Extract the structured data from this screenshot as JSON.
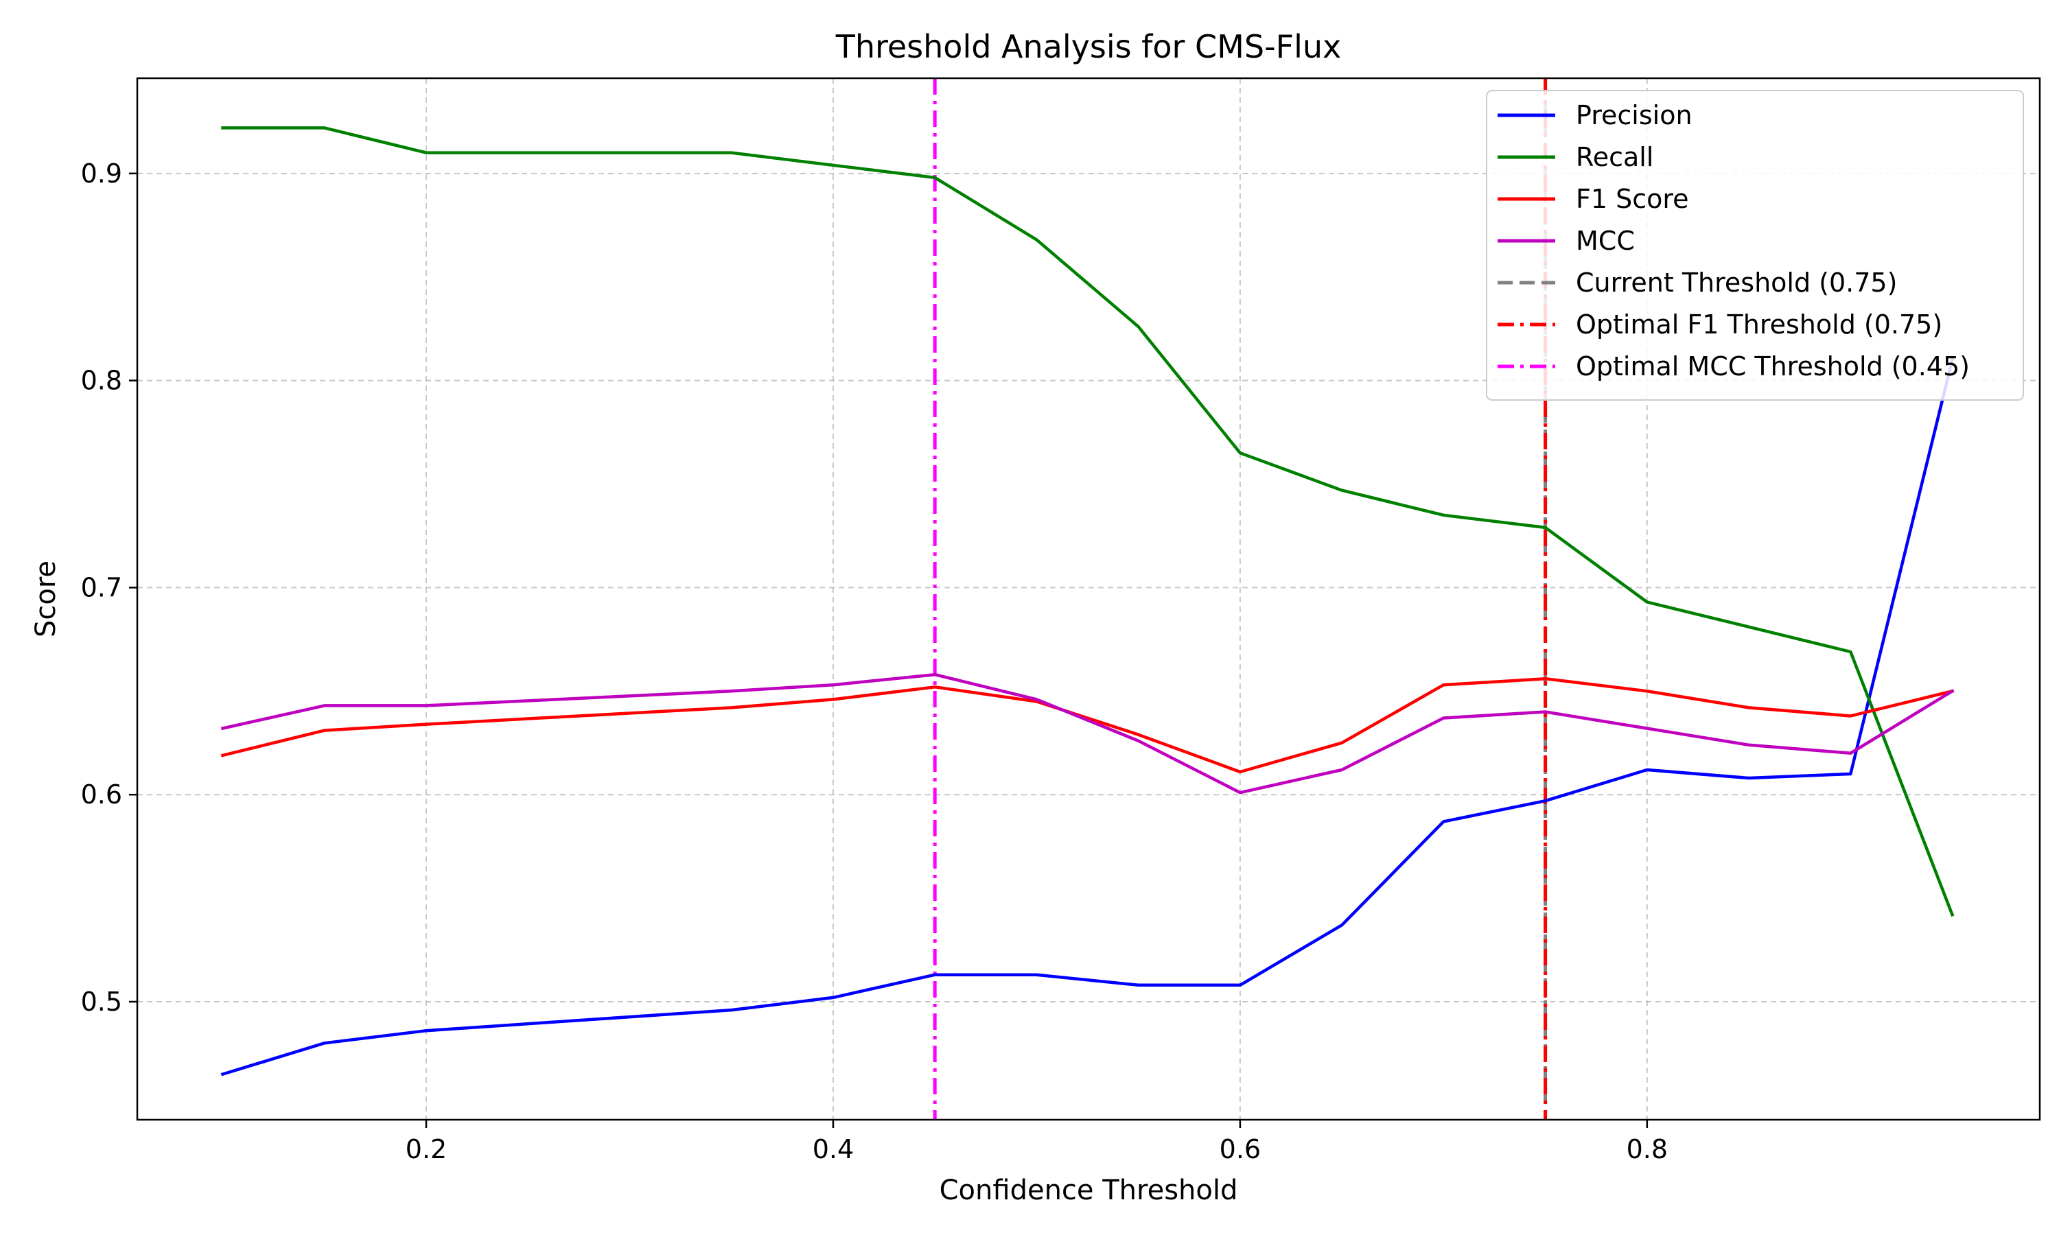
{
  "chart_data": {
    "type": "line",
    "title": "Threshold Analysis for CMS-Flux",
    "xlabel": "Confidence Threshold",
    "ylabel": "Score",
    "xlim": [
      0.058,
      0.993
    ],
    "ylim": [
      0.443,
      0.946
    ],
    "x_ticks": [
      0.2,
      0.4,
      0.6,
      0.8
    ],
    "x_tick_labels": [
      "0.2",
      "0.4",
      "0.6",
      "0.8"
    ],
    "y_ticks": [
      0.5,
      0.6,
      0.7,
      0.8,
      0.9
    ],
    "y_tick_labels": [
      "0.5",
      "0.6",
      "0.7",
      "0.8",
      "0.9"
    ],
    "grid": true,
    "legend_position": "top-right",
    "x": [
      0.1,
      0.15,
      0.2,
      0.35,
      0.4,
      0.45,
      0.5,
      0.55,
      0.6,
      0.65,
      0.7,
      0.75,
      0.8,
      0.85,
      0.9,
      0.95
    ],
    "series": [
      {
        "name": "Precision",
        "color": "#0000ff",
        "values": [
          0.465,
          0.48,
          0.486,
          0.496,
          0.502,
          0.513,
          0.513,
          0.508,
          0.508,
          0.537,
          0.587,
          0.597,
          0.612,
          0.608,
          0.61,
          0.81
        ]
      },
      {
        "name": "Recall",
        "color": "#008000",
        "values": [
          0.922,
          0.922,
          0.91,
          0.91,
          0.904,
          0.898,
          0.868,
          0.826,
          0.765,
          0.747,
          0.735,
          0.729,
          0.693,
          0.681,
          0.669,
          0.542
        ]
      },
      {
        "name": "F1 Score",
        "color": "#ff0000",
        "values": [
          0.619,
          0.631,
          0.634,
          0.642,
          0.646,
          0.652,
          0.645,
          0.629,
          0.611,
          0.625,
          0.653,
          0.656,
          0.65,
          0.642,
          0.638,
          0.65
        ]
      },
      {
        "name": "MCC",
        "color": "#bf00bf",
        "values": [
          0.632,
          0.643,
          0.643,
          0.65,
          0.653,
          0.658,
          0.646,
          0.626,
          0.601,
          0.612,
          0.637,
          0.64,
          0.632,
          0.624,
          0.62,
          0.65
        ]
      }
    ],
    "vlines": [
      {
        "name": "Current Threshold (0.75)",
        "x": 0.75,
        "color": "#808080",
        "style": "dashed"
      },
      {
        "name": "Optimal F1 Threshold (0.75)",
        "x": 0.75,
        "color": "#ff0000",
        "style": "dashdot"
      },
      {
        "name": "Optimal MCC Threshold (0.45)",
        "x": 0.45,
        "color": "#ff00ff",
        "style": "dashdot"
      }
    ]
  }
}
